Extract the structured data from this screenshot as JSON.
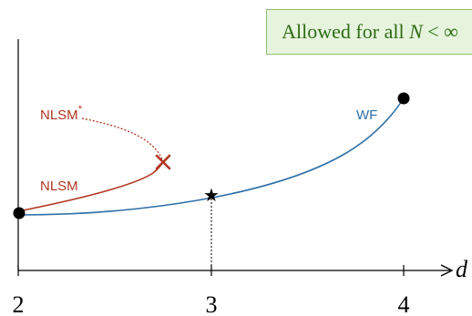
{
  "callout": {
    "prefix": "Allowed for all ",
    "variable": "N",
    "suffix": " < ∞"
  },
  "axis": {
    "label": "d",
    "ticks": [
      "2",
      "3",
      "4"
    ]
  },
  "curves": {
    "wf": {
      "label": "WF",
      "color": "#2f6fa8"
    },
    "nlsm": {
      "label": "NLSM",
      "color": "#b03520"
    },
    "nlsm_star": {
      "label": "NLSM",
      "superscript": "*",
      "color": "#b03520"
    }
  },
  "markers": {
    "fixed_point": "black-circle",
    "star": "black-star",
    "annihilation": "red-cross"
  }
}
